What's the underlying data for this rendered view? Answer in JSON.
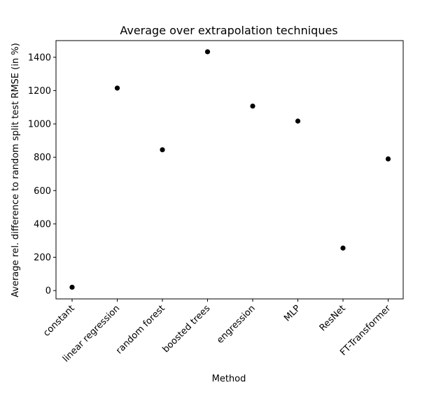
{
  "chart_data": {
    "type": "scatter",
    "title": "Average over extrapolation techniques",
    "xlabel": "Method",
    "ylabel": "Average rel. difference to random split test RMSE (in %)",
    "categories": [
      "constant",
      "linear regression",
      "random forest",
      "boosted trees",
      "engression",
      "MLP",
      "ResNet",
      "FT-Transformer"
    ],
    "values": [
      20,
      1215,
      845,
      1433,
      1107,
      1017,
      255,
      790
    ],
    "ylim": [
      -50,
      1500
    ],
    "yticks": [
      0,
      200,
      400,
      600,
      800,
      1000,
      1200,
      1400
    ],
    "grid": false,
    "marker_color": "#000000"
  }
}
